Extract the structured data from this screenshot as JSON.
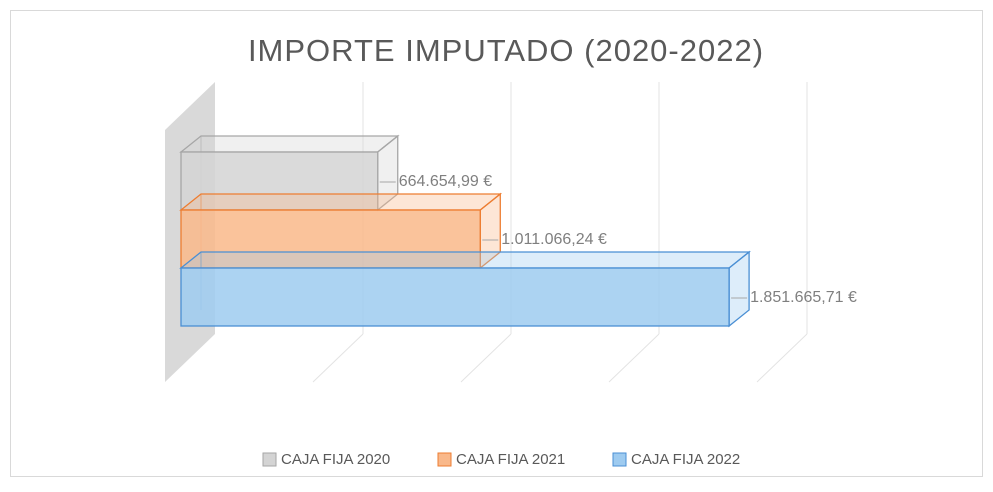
{
  "chart_data": {
    "type": "bar3d-horizontal",
    "title": "IMPORTE IMPUTADO (2020-2022)",
    "series": [
      {
        "name": "CAJA FIJA 2020",
        "color": "#d4d4d4",
        "edge": "#a6a6a6",
        "values": [
          664654.99
        ],
        "value_labels": [
          "664.654,99 €"
        ]
      },
      {
        "name": "CAJA FIJA 2021",
        "color": "#f9b88a",
        "edge": "#ed7d31",
        "values": [
          1011066.24
        ],
        "value_labels": [
          "1.011.066,24 €"
        ]
      },
      {
        "name": "CAJA FIJA 2022",
        "color": "#9ecbf0",
        "edge": "#4a8fd4",
        "values": [
          1851665.71
        ],
        "value_labels": [
          "1.851.665,71 €"
        ]
      }
    ],
    "xlim": [
      0,
      2000000
    ],
    "xticks": [
      0,
      500000,
      1000000,
      1500000,
      2000000
    ],
    "grid": true,
    "legend": "bottom"
  }
}
